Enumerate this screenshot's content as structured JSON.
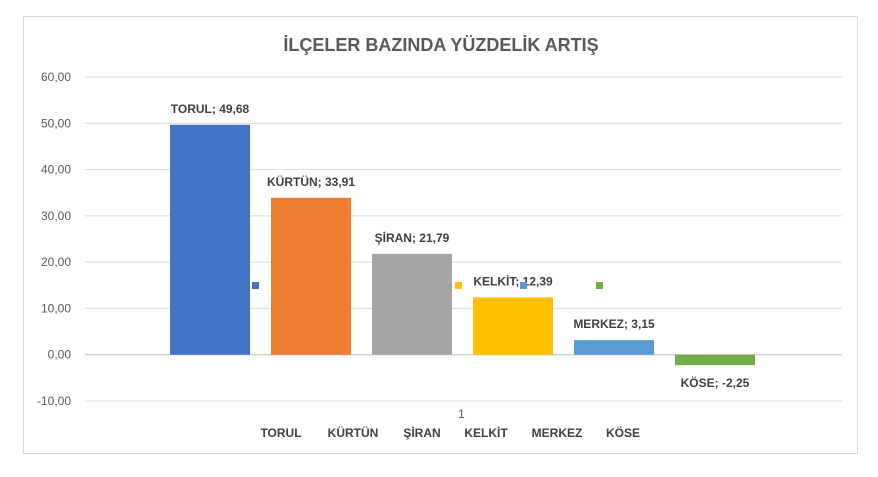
{
  "chart_data": {
    "type": "bar",
    "title": "İLÇELER BAZINDA YÜZDELİK ARTIŞ",
    "categories": [
      "1"
    ],
    "ylim": [
      -10,
      60
    ],
    "yticks": [
      "-10,00",
      "0,00",
      "10,00",
      "20,00",
      "30,00",
      "40,00",
      "50,00",
      "60,00"
    ],
    "grid": true,
    "legend_position": "bottom",
    "series": [
      {
        "name": "TORUL",
        "values": [
          49.68
        ],
        "label": "TORUL; 49,68",
        "color": "#4472C4"
      },
      {
        "name": "KÜRTÜN",
        "values": [
          33.91
        ],
        "label": "KÜRTÜN; 33,91",
        "color": "#ED7D31"
      },
      {
        "name": "ŞİRAN",
        "values": [
          21.79
        ],
        "label": "ŞİRAN; 21,79",
        "color": "#A5A5A5"
      },
      {
        "name": "KELKİT",
        "values": [
          12.39
        ],
        "label": "KELKİT; 12,39",
        "color": "#FFC000"
      },
      {
        "name": "MERKEZ",
        "values": [
          3.15
        ],
        "label": "MERKEZ; 3,15",
        "color": "#5B9BD5"
      },
      {
        "name": "KÖSE",
        "values": [
          -2.25
        ],
        "label": "KÖSE; -2,25",
        "color": "#70AD47"
      }
    ]
  }
}
